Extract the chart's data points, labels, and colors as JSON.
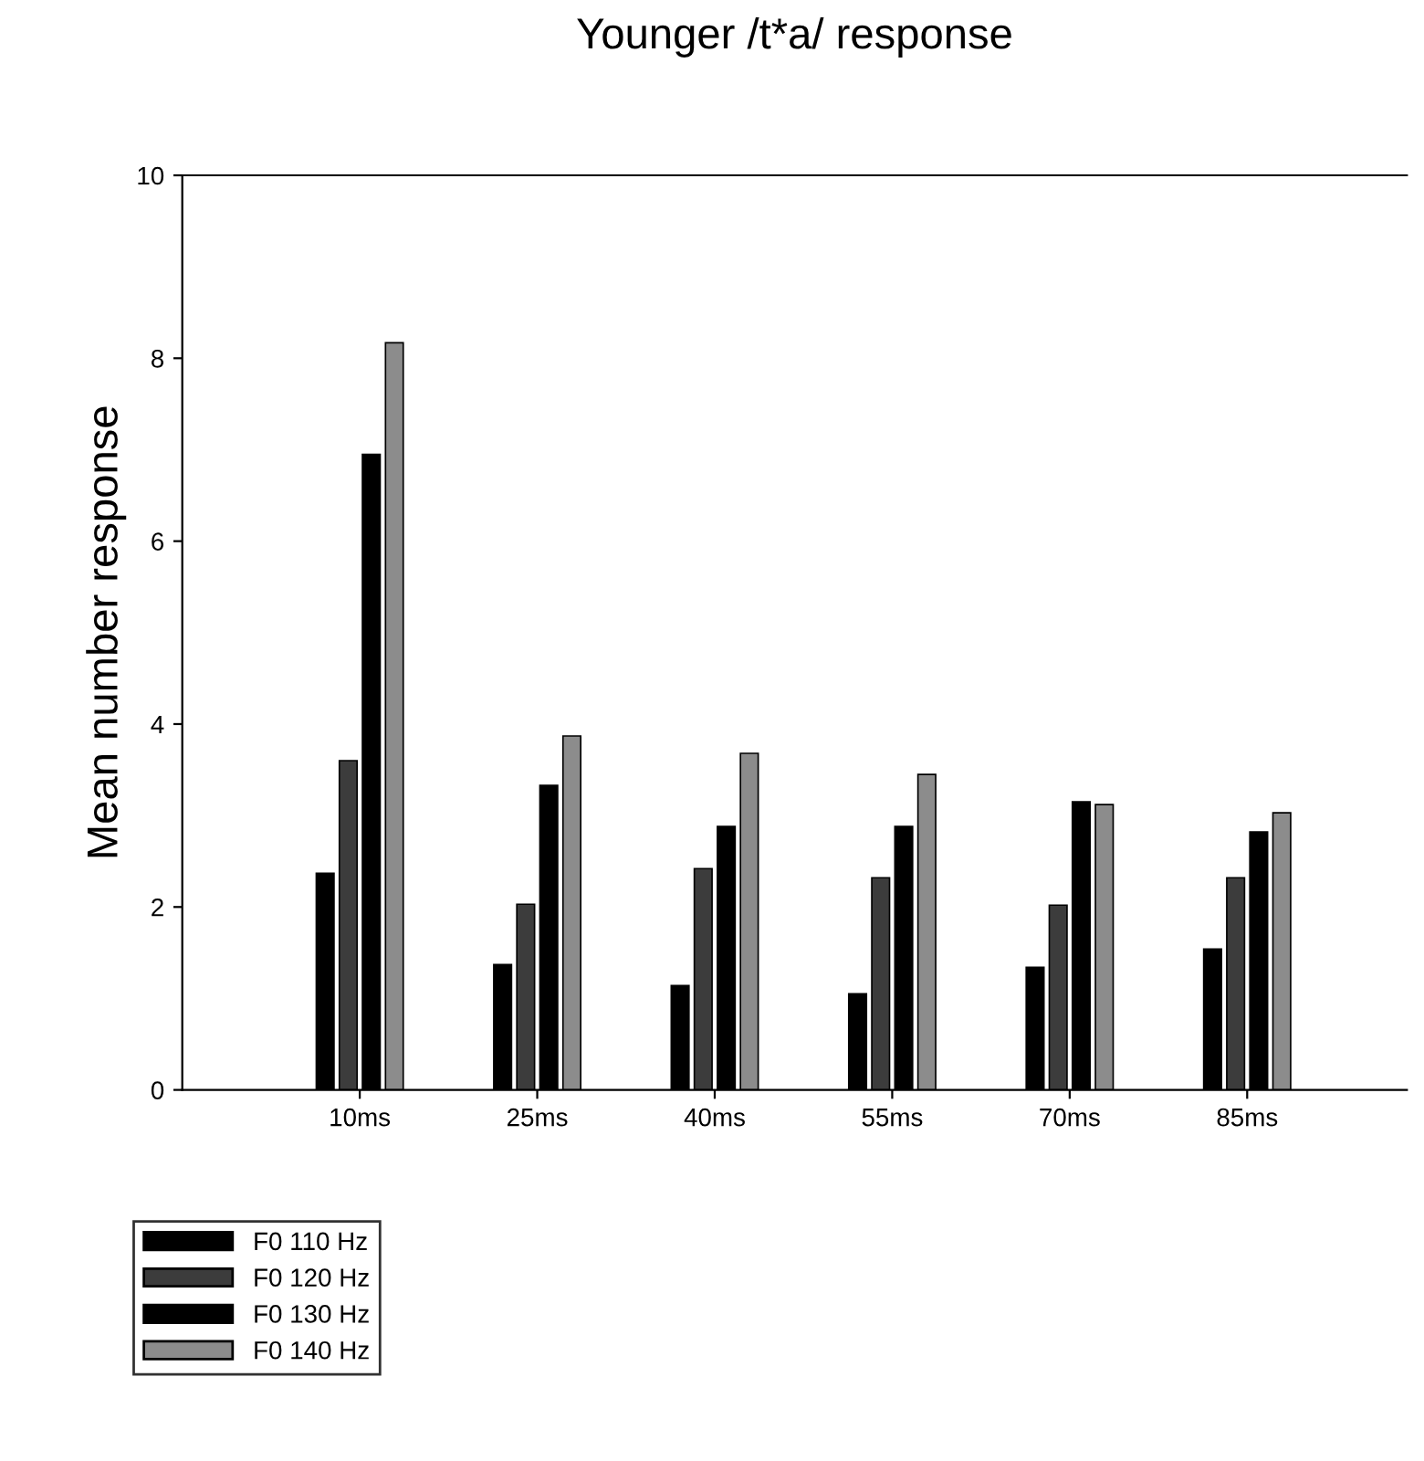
{
  "chart_data": {
    "type": "bar",
    "title": "Younger /t*a/ response",
    "ylabel": "Mean number response",
    "categories": [
      "10ms",
      "25ms",
      "40ms",
      "55ms",
      "70ms",
      "85ms"
    ],
    "series": [
      {
        "name": "F0 110 Hz",
        "color": "#000000",
        "values": [
          2.37,
          1.37,
          1.14,
          1.05,
          1.34,
          1.54
        ]
      },
      {
        "name": "F0 120 Hz",
        "color": "#3c3c3c",
        "values": [
          3.6,
          2.03,
          2.42,
          2.32,
          2.02,
          2.32
        ]
      },
      {
        "name": "F0 130 Hz",
        "color": "#000000",
        "values": [
          6.95,
          3.33,
          2.88,
          2.88,
          3.15,
          2.82
        ]
      },
      {
        "name": "F0 140 Hz",
        "color": "#8c8c8c",
        "values": [
          8.17,
          3.87,
          3.68,
          3.45,
          3.12,
          3.03
        ]
      }
    ],
    "ylim": [
      0,
      10
    ],
    "yticks": [
      0,
      2,
      4,
      6,
      8,
      10
    ],
    "grid": false,
    "legend": "bottom left"
  }
}
